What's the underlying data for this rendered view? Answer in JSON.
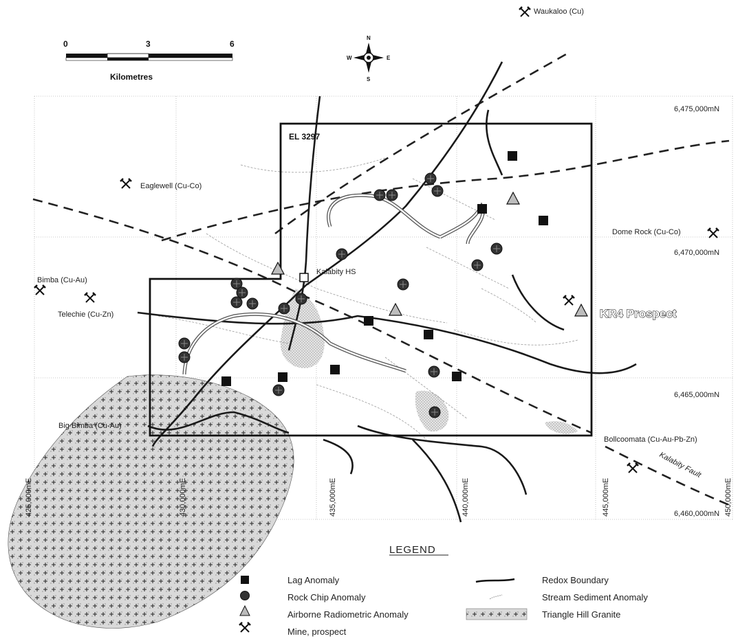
{
  "scale_bar": {
    "ticks": [
      "0",
      "3",
      "6"
    ],
    "unit_label": "Kilometres"
  },
  "compass": {
    "n": "N",
    "s": "S",
    "e": "E",
    "w": "W"
  },
  "tenement": {
    "label": "EL 3297"
  },
  "prospect_label": "KR4 Prospect",
  "homestead_label": "Kalabity HS",
  "fault_label": "Kalabity Fault",
  "northings": [
    "6,475,000mN",
    "6,470,000mN",
    "6,465,000mN",
    "6,460,000mN"
  ],
  "eastings": [
    "425,000mE",
    "430,000mE",
    "435,000mE",
    "440,000mE",
    "445,000mE",
    "450,000mE"
  ],
  "localities": [
    {
      "name": "Waukaloo (Cu)"
    },
    {
      "name": "Eaglewell (Cu-Co)"
    },
    {
      "name": "Dome Rock (Cu-Co)"
    },
    {
      "name": "Bimba (Cu-Au)"
    },
    {
      "name": "Telechie (Cu-Zn)"
    },
    {
      "name": "Big Bimba (Cu-Au)"
    },
    {
      "name": "Bollcoomata (Cu-Au-Pb-Zn)"
    }
  ],
  "legend": {
    "title": "LEGEND",
    "items": [
      {
        "label": "Lag Anomaly",
        "symbol": "square"
      },
      {
        "label": "Rock Chip Anomaly",
        "symbol": "circle"
      },
      {
        "label": "Airborne Radiometric Anomaly",
        "symbol": "triangle"
      },
      {
        "label": "Mine, prospect",
        "symbol": "mine-icon"
      },
      {
        "label": "Redox Boundary",
        "symbol": "line"
      },
      {
        "label": "Stream Sediment Anomaly",
        "symbol": "stipple"
      },
      {
        "label": "Triangle Hill Granite",
        "symbol": "granite"
      }
    ]
  },
  "colors": {
    "ink": "#1a1a1a",
    "grid": "#b0b0b0",
    "drainage": "#9a9a9a",
    "granite": "#cfcfcf"
  }
}
